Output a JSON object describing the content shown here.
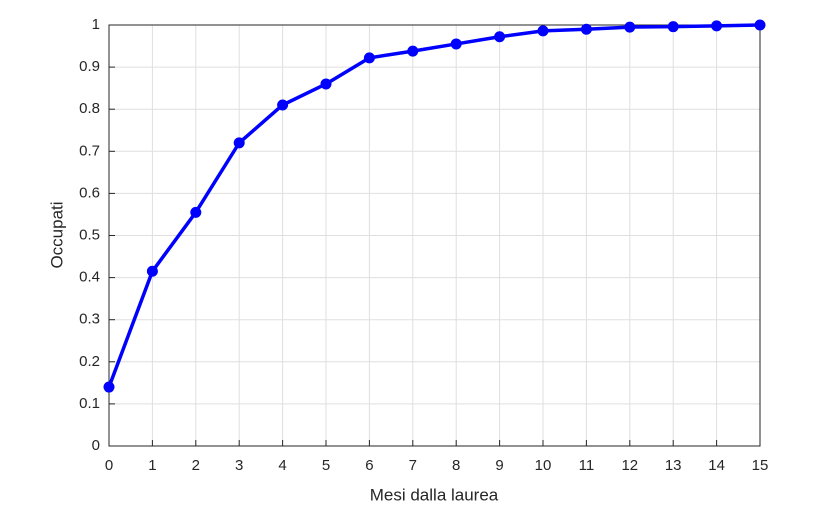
{
  "chart_data": {
    "type": "line",
    "x_label": "Mesi dalla laurea",
    "y_label": "Occupati",
    "x": [
      0,
      1,
      2,
      3,
      4,
      5,
      6,
      7,
      8,
      9,
      10,
      11,
      12,
      13,
      14,
      15
    ],
    "values": [
      0.14,
      0.415,
      0.555,
      0.72,
      0.81,
      0.86,
      0.922,
      0.938,
      0.955,
      0.972,
      0.986,
      0.99,
      0.995,
      0.996,
      0.998,
      1.0
    ],
    "color": "#0000ff",
    "xlim": [
      0,
      15
    ],
    "ylim": [
      0,
      1
    ],
    "xticks": [
      0,
      1,
      2,
      3,
      4,
      5,
      6,
      7,
      8,
      9,
      10,
      11,
      12,
      13,
      14,
      15
    ],
    "yticks": [
      0,
      0.1,
      0.2,
      0.3,
      0.4,
      0.5,
      0.6,
      0.7,
      0.8,
      0.9,
      1
    ],
    "grid": true
  }
}
